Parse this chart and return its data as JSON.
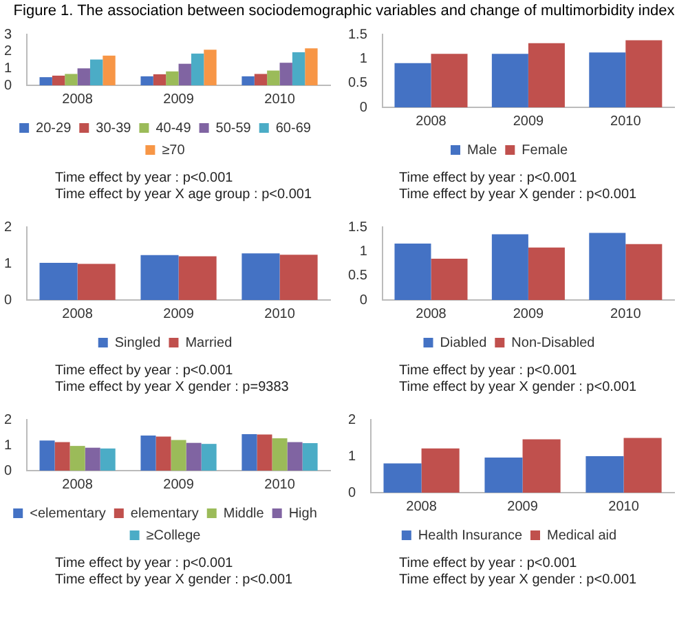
{
  "chart_data": [
    {
      "type": "bar",
      "title": "Figure 1. The association between sociodemographic variables and change of multimorbidity index",
      "categories": [
        "2008",
        "2009",
        "2010"
      ],
      "series": [
        {
          "name": "20-29",
          "color": "#4472c4",
          "values": [
            0.48,
            0.53,
            0.53
          ]
        },
        {
          "name": "30-39",
          "color": "#c0504d",
          "values": [
            0.57,
            0.65,
            0.67
          ]
        },
        {
          "name": "40-49",
          "color": "#9bbb59",
          "values": [
            0.67,
            0.82,
            0.87
          ]
        },
        {
          "name": "50-59",
          "color": "#8064a2",
          "values": [
            1.0,
            1.27,
            1.33
          ]
        },
        {
          "name": "60-69",
          "color": "#4bacc6",
          "values": [
            1.52,
            1.87,
            1.95
          ]
        },
        {
          "name": "≥70",
          "color": "#f79646",
          "values": [
            1.75,
            2.1,
            2.18
          ]
        }
      ],
      "ylim": [
        0,
        3
      ],
      "yticks": [
        0,
        1,
        2,
        3
      ],
      "grid": false,
      "legend": "bottom",
      "annotations": [
        "Time effect by year : p<0.001",
        "Time effect by year X age group : p<0.001"
      ]
    },
    {
      "type": "bar",
      "categories": [
        "2008",
        "2009",
        "2010"
      ],
      "series": [
        {
          "name": "Male",
          "color": "#4472c4",
          "values": [
            0.91,
            1.1,
            1.13
          ]
        },
        {
          "name": "Female",
          "color": "#c0504d",
          "values": [
            1.1,
            1.32,
            1.38
          ]
        }
      ],
      "ylim": [
        0,
        1.5
      ],
      "yticks": [
        0,
        0.5,
        1,
        1.5
      ],
      "grid": false,
      "legend": "bottom",
      "annotations": [
        "Time effect by year : p<0.001",
        "Time effect by year X gender : p<0.001"
      ]
    },
    {
      "type": "bar",
      "categories": [
        "2008",
        "2009",
        "2010"
      ],
      "series": [
        {
          "name": "Singled",
          "color": "#4472c4",
          "values": [
            1.02,
            1.23,
            1.28
          ]
        },
        {
          "name": "Married",
          "color": "#c0504d",
          "values": [
            0.99,
            1.2,
            1.24
          ]
        }
      ],
      "ylim": [
        0,
        2
      ],
      "yticks": [
        0,
        1,
        2
      ],
      "grid": false,
      "legend": "bottom",
      "annotations": [
        "Time effect by year : p<0.001",
        "Time effect by year X gender : p=9383"
      ]
    },
    {
      "type": "bar",
      "categories": [
        "2008",
        "2009",
        "2010"
      ],
      "series": [
        {
          "name": "Diabled",
          "color": "#4472c4",
          "values": [
            1.16,
            1.35,
            1.38
          ]
        },
        {
          "name": "Non-Disabled",
          "color": "#c0504d",
          "values": [
            0.85,
            1.08,
            1.15
          ]
        }
      ],
      "ylim": [
        0,
        1.5
      ],
      "yticks": [
        0,
        0.5,
        1,
        1.5
      ],
      "grid": false,
      "legend": "bottom",
      "annotations": [
        "Time effect by year : p<0.001",
        "Time effect by year X gender : p<0.001"
      ]
    },
    {
      "type": "bar",
      "categories": [
        "2008",
        "2009",
        "2010"
      ],
      "series": [
        {
          "name": "<elementary",
          "color": "#4472c4",
          "values": [
            1.18,
            1.38,
            1.43
          ]
        },
        {
          "name": "elementary",
          "color": "#c0504d",
          "values": [
            1.12,
            1.34,
            1.42
          ]
        },
        {
          "name": "Middle",
          "color": "#9bbb59",
          "values": [
            0.97,
            1.2,
            1.27
          ]
        },
        {
          "name": "High",
          "color": "#8064a2",
          "values": [
            0.9,
            1.09,
            1.12
          ]
        },
        {
          "name": "≥College",
          "color": "#4bacc6",
          "values": [
            0.87,
            1.05,
            1.08
          ]
        }
      ],
      "ylim": [
        0,
        2
      ],
      "yticks": [
        0,
        1,
        2
      ],
      "grid": false,
      "legend": "bottom",
      "annotations": [
        "Time effect by year : p<0.001",
        "Time effect by year X gender : p<0.001"
      ]
    },
    {
      "type": "bar",
      "categories": [
        "2008",
        "2009",
        "2010"
      ],
      "series": [
        {
          "name": "Health Insurance",
          "color": "#4472c4",
          "values": [
            0.8,
            0.96,
            1.0
          ]
        },
        {
          "name": "Medical aid",
          "color": "#c0504d",
          "values": [
            1.21,
            1.46,
            1.5
          ]
        }
      ],
      "ylim": [
        0,
        2
      ],
      "yticks": [
        0,
        1,
        2
      ],
      "grid": false,
      "legend": "bottom",
      "annotations": [
        "Time effect by year : p<0.001",
        "Time effect by year X gender : p<0.001"
      ]
    }
  ]
}
